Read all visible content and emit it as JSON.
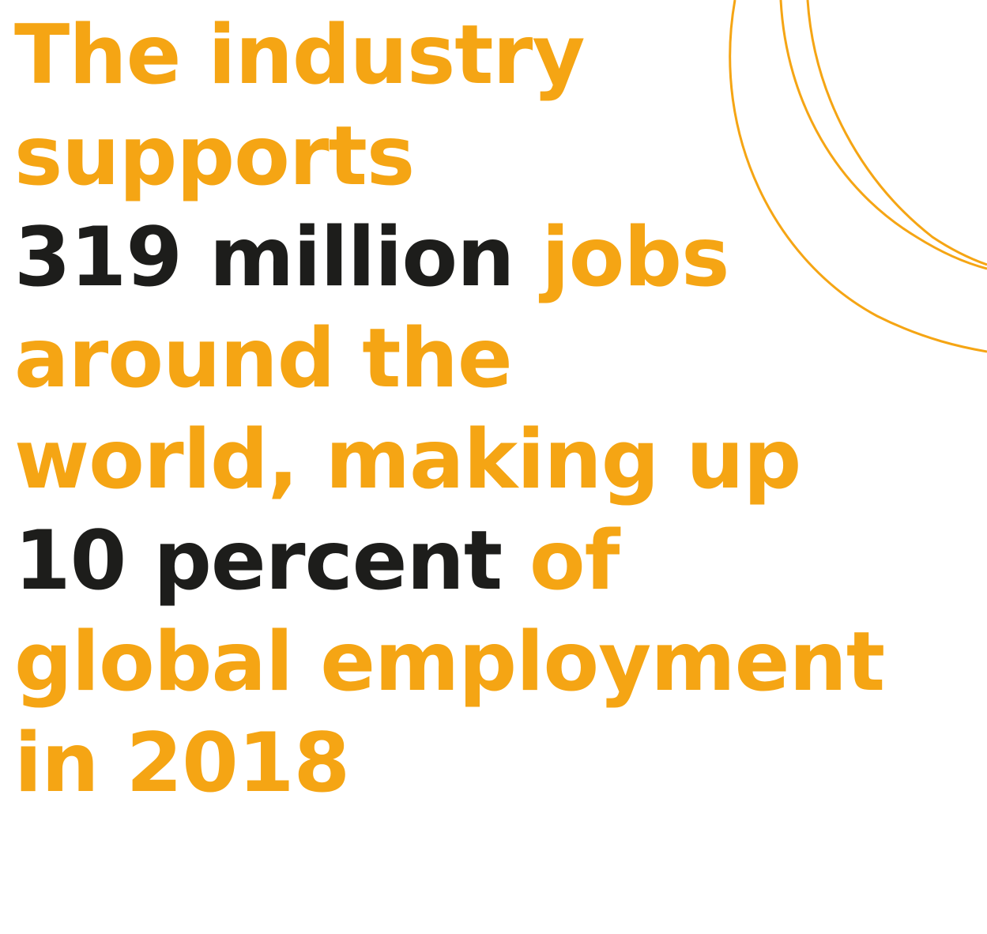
{
  "colors": {
    "accent": "#F5A514",
    "dark": "#1D1D1B",
    "background": "#FFFFFF"
  },
  "headline": {
    "lines": [
      {
        "segments": [
          {
            "text": "The industry"
          }
        ]
      },
      {
        "segments": [
          {
            "text": "supports"
          }
        ]
      },
      {
        "segments": [
          {
            "text": "319 million"
          },
          {
            "text": " jobs"
          }
        ]
      },
      {
        "segments": [
          {
            "text": "around the"
          }
        ]
      },
      {
        "segments": [
          {
            "text": "world, making up"
          }
        ]
      },
      {
        "segments": [
          {
            "text": "10 percent"
          },
          {
            "text": " of"
          }
        ]
      },
      {
        "segments": [
          {
            "text": "global employment"
          }
        ]
      },
      {
        "segments": [
          {
            "text": "in 2018"
          }
        ]
      }
    ]
  }
}
